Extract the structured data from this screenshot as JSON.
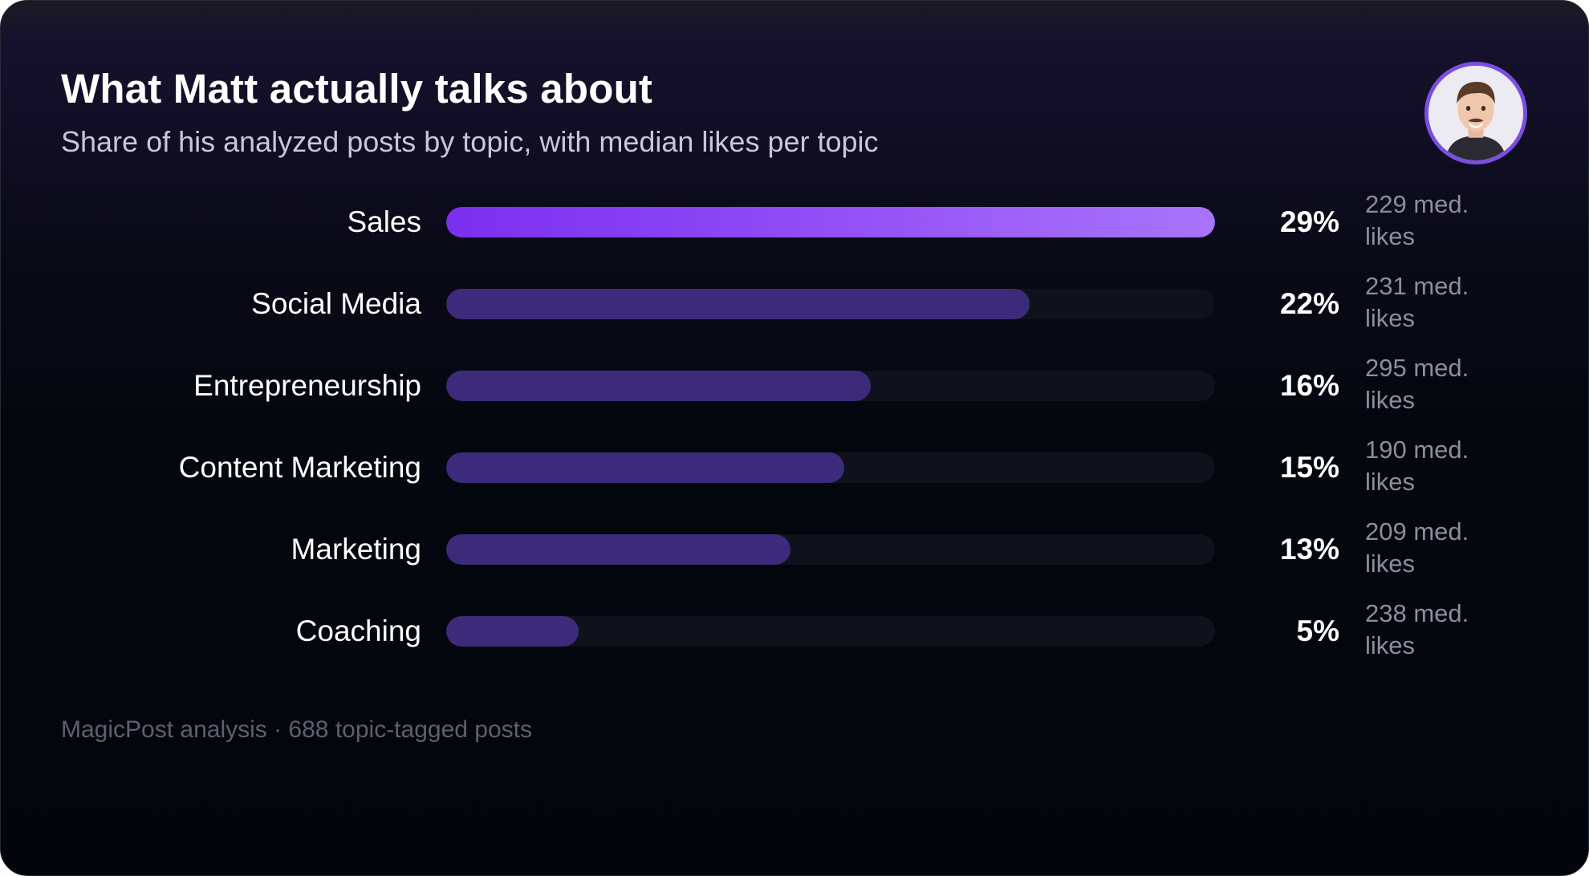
{
  "header": {
    "title": "What Matt actually talks about",
    "subtitle": "Share of his analyzed posts by topic, with median likes per topic"
  },
  "avatar": {
    "icon": "profile-photo",
    "ring_color": "#7b4ee0"
  },
  "chart_data": {
    "type": "bar",
    "orientation": "horizontal",
    "categories": [
      "Sales",
      "Social Media",
      "Entrepreneurship",
      "Content Marketing",
      "Marketing",
      "Coaching"
    ],
    "values": [
      29,
      22,
      16,
      15,
      13,
      5
    ],
    "value_labels": [
      "29%",
      "22%",
      "16%",
      "15%",
      "13%",
      "5%"
    ],
    "median_likes_labels": [
      "229 med. likes",
      "231 med. likes",
      "295 med. likes",
      "190 med. likes",
      "209 med. likes",
      "238 med. likes"
    ],
    "median_likes": [
      229,
      231,
      295,
      190,
      209,
      238
    ],
    "xlim": [
      0,
      29
    ],
    "grid": false,
    "legend": "none",
    "colors": {
      "highlight_start": "#7b2ff0",
      "highlight_end": "#a874fb",
      "bar": "#3b2b7a",
      "track": "#0f121d"
    }
  },
  "footer": {
    "source": "MagicPost analysis · 688 topic-tagged posts"
  }
}
